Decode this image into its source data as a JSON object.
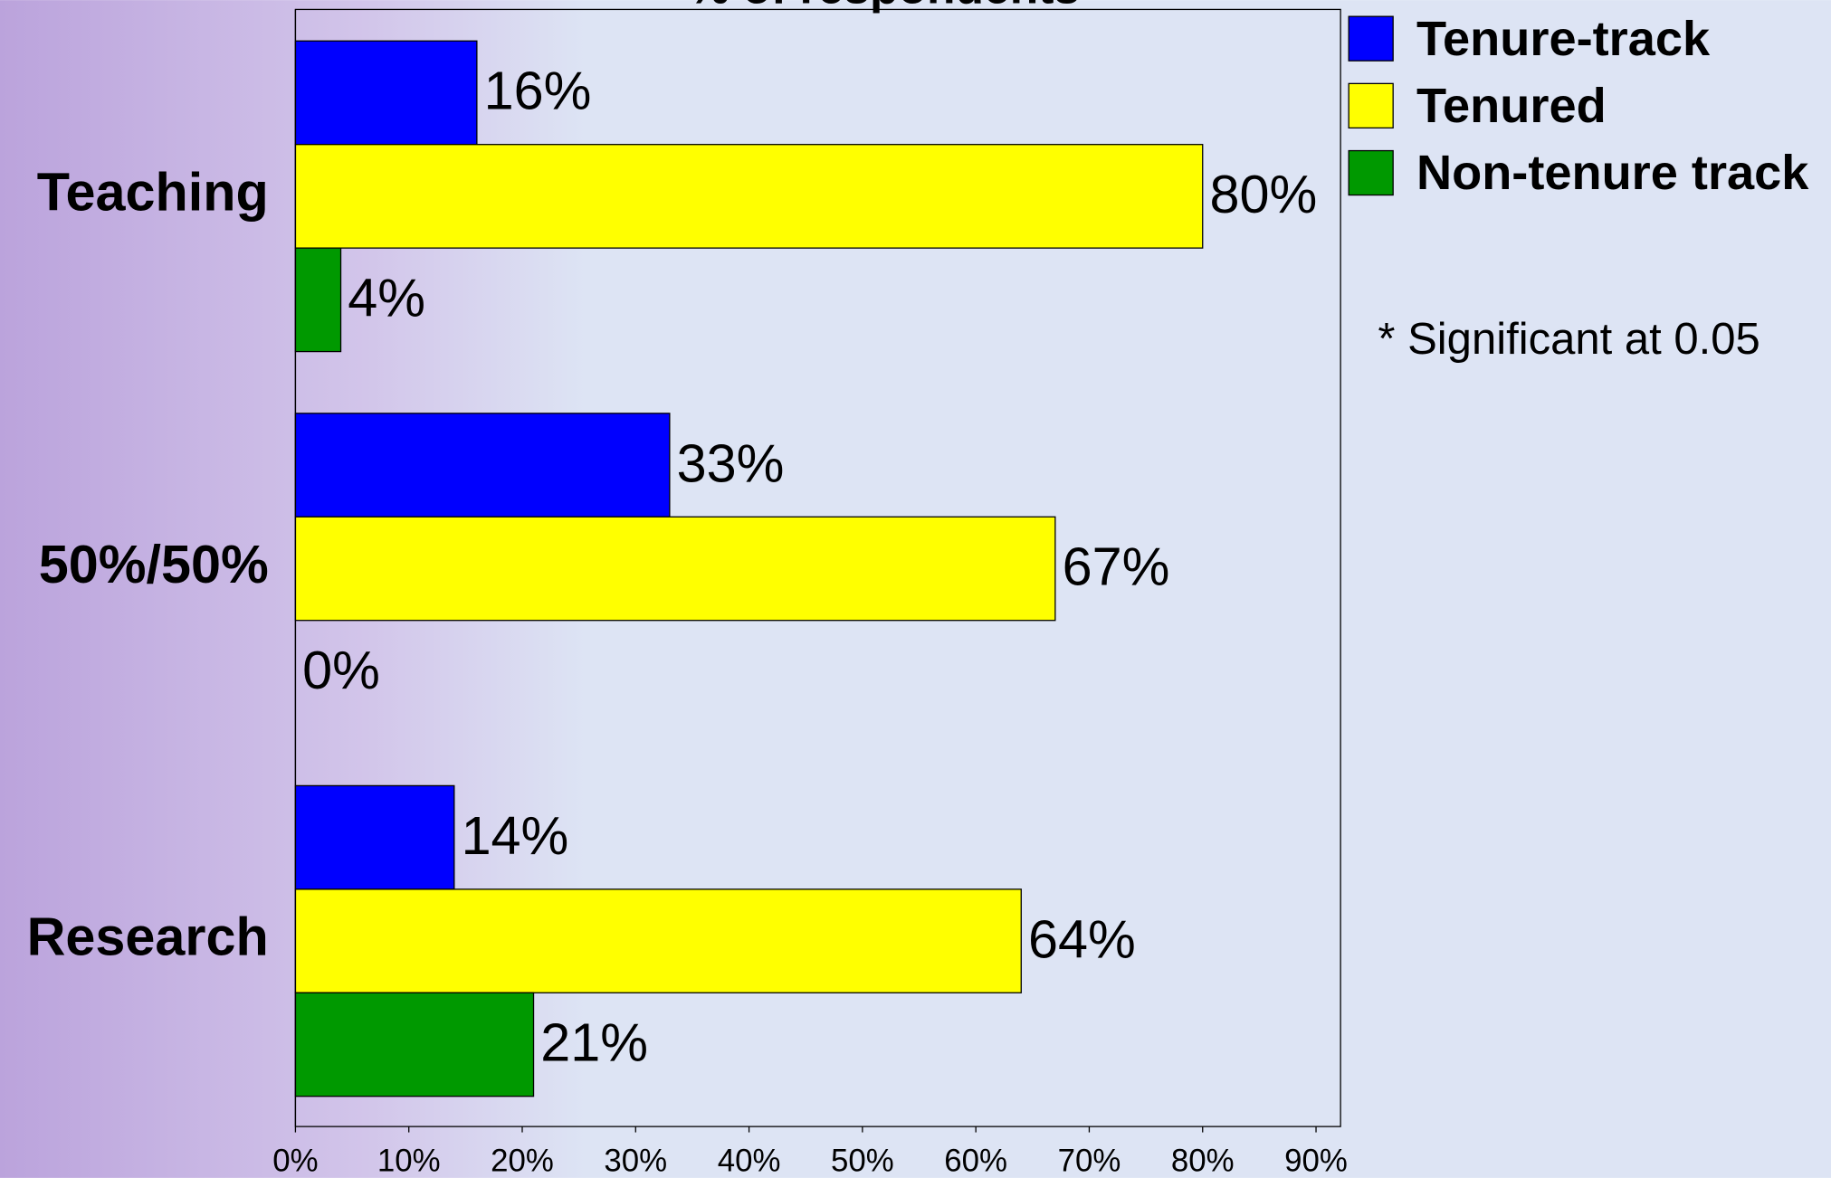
{
  "chart_data": {
    "type": "bar",
    "orientation": "horizontal",
    "title": "% of respondents",
    "categories": [
      "Teaching",
      "50%/50%",
      "Research"
    ],
    "series": [
      {
        "name": "Tenure-track",
        "color": "#0000ff",
        "values": [
          16,
          33,
          14
        ],
        "value_labels": [
          "16%",
          "33%",
          "14%"
        ]
      },
      {
        "name": "Tenured",
        "color": "#ffff00",
        "values": [
          80,
          67,
          64
        ],
        "value_labels": [
          "80%",
          "67%",
          "64%"
        ]
      },
      {
        "name": "Non-tenure track",
        "color": "#009900",
        "values": [
          4,
          0,
          21
        ],
        "value_labels": [
          "4%",
          "0%",
          "21%"
        ]
      }
    ],
    "xlim": [
      0,
      90
    ],
    "xticks": [
      {
        "value": 0,
        "label": "0%"
      },
      {
        "value": 10,
        "label": "10%"
      },
      {
        "value": 20,
        "label": "20%"
      },
      {
        "value": 30,
        "label": "30%"
      },
      {
        "value": 40,
        "label": "40%"
      },
      {
        "value": 50,
        "label": "50%"
      },
      {
        "value": 60,
        "label": "60%"
      },
      {
        "value": 70,
        "label": "70%"
      },
      {
        "value": 80,
        "label": "80%"
      },
      {
        "value": 90,
        "label": "90%"
      }
    ],
    "annotation": "* Significant at 0.05",
    "legend": "right"
  }
}
